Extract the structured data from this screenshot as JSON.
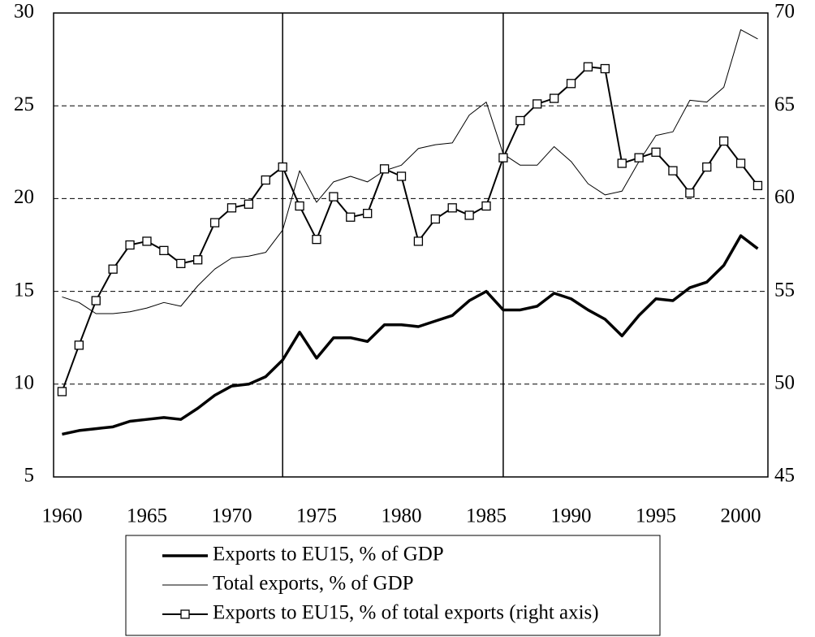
{
  "chart_data": {
    "type": "line",
    "x": [
      1960,
      1961,
      1962,
      1963,
      1964,
      1965,
      1966,
      1967,
      1968,
      1969,
      1970,
      1971,
      1972,
      1973,
      1974,
      1975,
      1976,
      1977,
      1978,
      1979,
      1980,
      1981,
      1982,
      1983,
      1984,
      1985,
      1986,
      1987,
      1988,
      1989,
      1990,
      1991,
      1992,
      1993,
      1994,
      1995,
      1996,
      1997,
      1998,
      1999,
      2000,
      2001
    ],
    "xlim": [
      1959.5,
      2001.6
    ],
    "xticks": [
      1960,
      1965,
      1970,
      1975,
      1980,
      1985,
      1990,
      1995,
      2000
    ],
    "ylim": [
      5,
      30
    ],
    "yticks": [
      5,
      10,
      15,
      20,
      25,
      30
    ],
    "y2lim": [
      45,
      70
    ],
    "y2ticks": [
      45,
      50,
      55,
      60,
      65,
      70
    ],
    "grid": true,
    "vlines": [
      1973,
      1986
    ],
    "series": [
      {
        "name": "Exports to EU15, % of GDP",
        "color": "#000000",
        "width": 3.5,
        "marker": "none",
        "values": [
          7.3,
          7.5,
          7.6,
          7.7,
          8.0,
          8.1,
          8.2,
          8.1,
          8.7,
          9.4,
          9.9,
          10.0,
          10.4,
          11.3,
          12.8,
          11.4,
          12.5,
          12.5,
          12.3,
          13.2,
          13.2,
          13.1,
          13.4,
          13.7,
          14.5,
          15.0,
          14.0,
          14.0,
          14.2,
          14.9,
          14.6,
          14.0,
          13.5,
          12.6,
          13.7,
          14.6,
          14.5,
          15.2,
          15.5,
          16.4,
          18.0,
          17.3
        ]
      },
      {
        "name": "Total exports, % of GDP",
        "color": "#000000",
        "width": 1,
        "marker": "none",
        "values": [
          14.7,
          14.4,
          13.8,
          13.8,
          13.9,
          14.1,
          14.4,
          14.2,
          15.3,
          16.2,
          16.8,
          16.9,
          17.1,
          18.3,
          21.5,
          19.8,
          20.9,
          21.2,
          20.9,
          21.5,
          21.8,
          22.7,
          22.9,
          23.0,
          24.5,
          25.2,
          22.4,
          21.8,
          21.8,
          22.8,
          22.0,
          20.8,
          20.2,
          20.4,
          22.0,
          23.4,
          23.6,
          25.3,
          25.2,
          26.0,
          29.1,
          28.6
        ]
      },
      {
        "name": "Exports to EU15, % of total exports (right axis)",
        "color": "#000000",
        "width": 2,
        "marker": "square",
        "axis": "y2",
        "values": [
          49.6,
          52.1,
          54.5,
          56.2,
          57.5,
          57.7,
          57.2,
          56.5,
          56.7,
          58.7,
          59.5,
          59.7,
          61.0,
          61.7,
          59.6,
          57.8,
          60.1,
          59.0,
          59.2,
          61.6,
          61.2,
          57.7,
          58.9,
          59.5,
          59.1,
          59.6,
          62.2,
          64.2,
          65.1,
          65.4,
          66.2,
          67.1,
          67.0,
          61.9,
          62.2,
          62.5,
          61.5,
          60.3,
          61.7,
          63.1,
          61.9,
          60.7
        ]
      }
    ]
  }
}
